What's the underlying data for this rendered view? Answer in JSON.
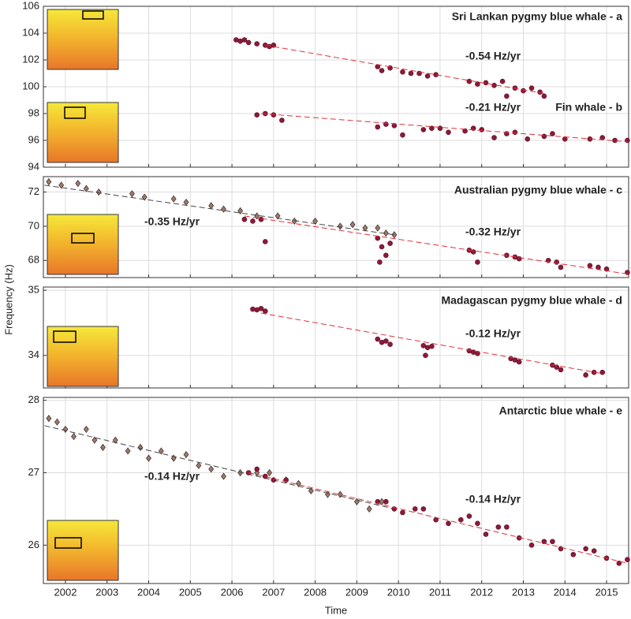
{
  "ylabel": "Frequency (Hz)",
  "xlabel": "Time",
  "chart_data": [
    {
      "type": "scatter",
      "xlim": [
        2001.47,
        2015.53
      ],
      "xticks": [
        2002,
        2003,
        2004,
        2005,
        2006,
        2007,
        2008,
        2009,
        2010,
        2011,
        2012,
        2013,
        2014,
        2015
      ],
      "ylim": [
        94,
        106
      ],
      "yticks": [
        94,
        96,
        98,
        100,
        102,
        104,
        106
      ],
      "grid": true,
      "series": [
        {
          "name": "Sri Lankan pygmy blue whale - a",
          "color": "#8b1a3a",
          "marker": "circle",
          "x": [
            2006.1,
            2006.2,
            2006.3,
            2006.4,
            2006.6,
            2006.8,
            2006.9,
            2007.0,
            2009.5,
            2009.6,
            2009.8,
            2010.1,
            2010.3,
            2010.5,
            2010.7,
            2010.9,
            2011.7,
            2011.9,
            2012.1,
            2012.3,
            2012.5,
            2012.6,
            2012.8,
            2013.0,
            2013.2,
            2013.4,
            2013.5
          ],
          "values": [
            103.5,
            103.4,
            103.5,
            103.3,
            103.2,
            103.1,
            103.0,
            103.1,
            101.5,
            101.2,
            101.4,
            101.1,
            101.0,
            101.0,
            100.8,
            100.9,
            100.4,
            100.2,
            100.3,
            100.1,
            100.4,
            99.3,
            99.9,
            99.7,
            99.9,
            99.6,
            99.3
          ],
          "trend": {
            "x": [
              2006.8,
              2013.5
            ],
            "values": [
              103.1,
              99.5
            ],
            "color": "#e0303a",
            "rate": "-0.54 Hz/yr"
          }
        },
        {
          "name": "Fin whale - b",
          "color": "#8b1a3a",
          "marker": "circle",
          "x": [
            2006.6,
            2006.8,
            2007.0,
            2007.2,
            2009.5,
            2009.7,
            2009.9,
            2010.1,
            2010.6,
            2010.8,
            2011.0,
            2011.2,
            2011.6,
            2011.8,
            2012.0,
            2012.3,
            2012.6,
            2012.8,
            2013.1,
            2013.5,
            2013.7,
            2014.0,
            2014.6,
            2014.9,
            2015.2,
            2015.5
          ],
          "values": [
            97.9,
            98.0,
            97.9,
            97.5,
            97.0,
            97.2,
            97.1,
            96.4,
            96.8,
            96.9,
            96.9,
            96.6,
            96.7,
            96.9,
            96.8,
            96.2,
            96.5,
            96.6,
            96.1,
            96.3,
            96.5,
            96.1,
            96.1,
            96.2,
            96.0,
            96.0
          ],
          "trend": {
            "x": [
              2006.7,
              2015.5
            ],
            "values": [
              98.0,
              95.9
            ],
            "color": "#e0303a",
            "rate": "-0.21 Hz/yr"
          }
        }
      ]
    },
    {
      "type": "scatter",
      "xlim": [
        2001.47,
        2015.53
      ],
      "xticks": [
        2002,
        2003,
        2004,
        2005,
        2006,
        2007,
        2008,
        2009,
        2010,
        2011,
        2012,
        2013,
        2014,
        2015
      ],
      "ylim": [
        67,
        72.9
      ],
      "yticks": [
        68,
        70,
        72
      ],
      "grid": true,
      "series": [
        {
          "color": "#9a7a6c",
          "marker": "diamond",
          "x": [
            2001.6,
            2001.9,
            2002.3,
            2002.5,
            2002.8,
            2003.6,
            2003.9,
            2004.6,
            2004.9,
            2005.5,
            2005.8,
            2006.2,
            2006.6,
            2007.1,
            2007.5,
            2008.0,
            2008.6,
            2008.9,
            2009.2,
            2009.5,
            2009.7,
            2009.9
          ],
          "values": [
            72.6,
            72.4,
            72.5,
            72.2,
            72.0,
            71.9,
            71.7,
            71.6,
            71.4,
            71.2,
            71.0,
            70.9,
            70.6,
            70.6,
            70.3,
            70.3,
            70.0,
            70.1,
            69.9,
            69.9,
            69.6,
            69.5
          ],
          "trend": {
            "x": [
              2001.5,
              2009.9
            ],
            "values": [
              72.4,
              69.5
            ],
            "color": "#444444",
            "rate": "-0.35 Hz/yr",
            "rate_color": "#8a8a8a"
          }
        },
        {
          "name": "Australian pygmy blue whale - c",
          "color": "#8b1a3a",
          "marker": "circle",
          "x": [
            2006.3,
            2006.5,
            2006.7,
            2006.8,
            2009.5,
            2009.6,
            2009.7,
            2009.8,
            2009.55,
            2011.7,
            2011.8,
            2011.9,
            2012.6,
            2012.8,
            2012.9,
            2013.6,
            2013.8,
            2013.9,
            2014.6,
            2014.8,
            2015.0,
            2015.5
          ],
          "values": [
            70.4,
            70.3,
            70.4,
            69.1,
            69.3,
            68.8,
            68.3,
            69.0,
            67.9,
            68.6,
            68.5,
            67.9,
            68.3,
            68.2,
            68.1,
            68.0,
            67.9,
            67.6,
            67.7,
            67.6,
            67.5,
            67.3
          ],
          "trend": {
            "x": [
              2006.3,
              2015.53
            ],
            "values": [
              70.6,
              67.2
            ],
            "color": "#e0303a",
            "rate": "-0.32 Hz/yr"
          }
        }
      ]
    },
    {
      "type": "scatter",
      "xlim": [
        2001.47,
        2015.53
      ],
      "xticks": [
        2002,
        2003,
        2004,
        2005,
        2006,
        2007,
        2008,
        2009,
        2010,
        2011,
        2012,
        2013,
        2014,
        2015
      ],
      "ylim": [
        33.5,
        35.05
      ],
      "yticks": [
        34,
        35
      ],
      "grid": true,
      "series": [
        {
          "name": "Madagascan pygmy blue whale - d",
          "color": "#8b1a3a",
          "marker": "circle",
          "x": [
            2006.5,
            2006.6,
            2006.7,
            2006.8,
            2009.5,
            2009.6,
            2009.7,
            2009.8,
            2010.6,
            2010.7,
            2010.8,
            2010.65,
            2011.7,
            2011.8,
            2011.9,
            2012.7,
            2012.8,
            2012.9,
            2013.7,
            2013.8,
            2013.9,
            2014.5,
            2014.7,
            2014.9
          ],
          "values": [
            34.71,
            34.7,
            34.72,
            34.68,
            34.25,
            34.2,
            34.22,
            34.17,
            34.15,
            34.12,
            34.14,
            34.0,
            34.07,
            34.05,
            34.03,
            33.95,
            33.93,
            33.9,
            33.85,
            33.82,
            33.78,
            33.7,
            33.74,
            33.74
          ],
          "trend": {
            "x": [
              2006.7,
              2014.9
            ],
            "values": [
              34.65,
              33.72
            ],
            "color": "#e0303a",
            "rate": "-0.12 Hz/yr"
          }
        }
      ]
    },
    {
      "type": "scatter",
      "xlim": [
        2001.47,
        2015.53
      ],
      "xticks": [
        2002,
        2003,
        2004,
        2005,
        2006,
        2007,
        2008,
        2009,
        2010,
        2011,
        2012,
        2013,
        2014,
        2015
      ],
      "ylim": [
        25.47,
        28.04
      ],
      "yticks": [
        26,
        27,
        28
      ],
      "grid": true,
      "series": [
        {
          "color": "#9a7a6c",
          "marker": "diamond",
          "x": [
            2001.6,
            2001.8,
            2002.0,
            2002.2,
            2002.5,
            2002.7,
            2002.9,
            2003.2,
            2003.5,
            2003.8,
            2004.0,
            2004.3,
            2004.6,
            2004.9,
            2005.2,
            2005.5,
            2005.8,
            2006.2,
            2006.6,
            2006.9,
            2007.3,
            2007.6,
            2007.9,
            2008.3,
            2008.6,
            2009.0,
            2009.3,
            2009.6
          ],
          "values": [
            27.75,
            27.7,
            27.6,
            27.5,
            27.6,
            27.45,
            27.35,
            27.45,
            27.3,
            27.35,
            27.2,
            27.3,
            27.2,
            27.25,
            27.1,
            27.05,
            26.95,
            27.0,
            27.0,
            27.0,
            26.9,
            26.85,
            26.75,
            26.7,
            26.7,
            26.6,
            26.5,
            26.6
          ],
          "trend": {
            "x": [
              2001.5,
              2009.9
            ],
            "values": [
              27.65,
              26.5
            ],
            "color": "#444444",
            "rate": "-0.14 Hz/yr",
            "rate_color": "#8a8a8a"
          }
        },
        {
          "name": "Antarctic blue whale - e",
          "color": "#8b1a3a",
          "marker": "circle",
          "x": [
            2006.4,
            2006.6,
            2006.8,
            2007.0,
            2007.3,
            2009.5,
            2009.7,
            2009.9,
            2010.1,
            2010.4,
            2010.6,
            2010.9,
            2011.2,
            2011.5,
            2011.7,
            2011.9,
            2012.1,
            2012.4,
            2012.6,
            2012.9,
            2013.2,
            2013.5,
            2013.7,
            2013.9,
            2014.2,
            2014.5,
            2014.7,
            2015.0,
            2015.3,
            2015.5
          ],
          "values": [
            27.0,
            27.05,
            26.95,
            26.9,
            26.9,
            26.6,
            26.6,
            26.5,
            26.45,
            26.5,
            26.5,
            26.35,
            26.3,
            26.35,
            26.4,
            26.3,
            26.15,
            26.25,
            26.25,
            26.1,
            26.0,
            26.05,
            26.05,
            25.95,
            25.87,
            25.95,
            25.92,
            25.82,
            25.75,
            25.8
          ],
          "trend": {
            "x": [
              2006.4,
              2015.5
            ],
            "values": [
              27.0,
              25.75
            ],
            "color": "#e0303a",
            "rate": "-0.14 Hz/yr"
          }
        }
      ]
    }
  ]
}
